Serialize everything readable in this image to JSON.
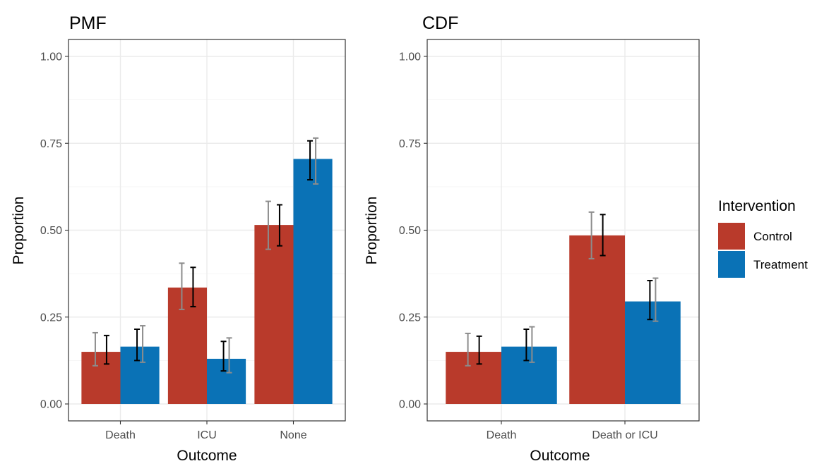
{
  "legend": {
    "title": "Intervention",
    "items": [
      {
        "label": "Control",
        "color": "#B93A2B"
      },
      {
        "label": "Treatment",
        "color": "#0A72B6"
      }
    ],
    "placement": "right"
  },
  "interval_colors": {
    "outer": "#8c8c8c",
    "inner": "#000000"
  },
  "chart_data": [
    {
      "type": "bar",
      "title": "PMF",
      "xlabel": "Outcome",
      "ylabel": "Proportion",
      "ylim": [
        0,
        1
      ],
      "yticks": [
        "0.00",
        "0.25",
        "0.50",
        "0.75",
        "1.00"
      ],
      "grid": true,
      "categories": [
        "Death",
        "ICU",
        "None"
      ],
      "series": [
        {
          "name": "Control",
          "color": "#B93A2B",
          "values": [
            0.15,
            0.335,
            0.515
          ],
          "interval_outer": [
            [
              0.11,
              0.205
            ],
            [
              0.272,
              0.405
            ],
            [
              0.445,
              0.583
            ]
          ],
          "interval_inner": [
            [
              0.115,
              0.197
            ],
            [
              0.28,
              0.393
            ],
            [
              0.455,
              0.573
            ]
          ]
        },
        {
          "name": "Treatment",
          "color": "#0A72B6",
          "values": [
            0.165,
            0.13,
            0.705
          ],
          "interval_outer": [
            [
              0.12,
              0.225
            ],
            [
              0.09,
              0.19
            ],
            [
              0.633,
              0.765
            ]
          ],
          "interval_inner": [
            [
              0.125,
              0.215
            ],
            [
              0.095,
              0.18
            ],
            [
              0.645,
              0.757
            ]
          ]
        }
      ]
    },
    {
      "type": "bar",
      "title": "CDF",
      "xlabel": "Outcome",
      "ylabel": "Proportion",
      "ylim": [
        0,
        1
      ],
      "yticks": [
        "0.00",
        "0.25",
        "0.50",
        "0.75",
        "1.00"
      ],
      "grid": true,
      "categories": [
        "Death",
        "Death or ICU"
      ],
      "series": [
        {
          "name": "Control",
          "color": "#B93A2B",
          "values": [
            0.15,
            0.485
          ],
          "interval_outer": [
            [
              0.11,
              0.203
            ],
            [
              0.418,
              0.552
            ]
          ],
          "interval_inner": [
            [
              0.115,
              0.195
            ],
            [
              0.427,
              0.545
            ]
          ]
        },
        {
          "name": "Treatment",
          "color": "#0A72B6",
          "values": [
            0.165,
            0.295
          ],
          "interval_outer": [
            [
              0.12,
              0.222
            ],
            [
              0.238,
              0.362
            ]
          ],
          "interval_inner": [
            [
              0.125,
              0.215
            ],
            [
              0.243,
              0.355
            ]
          ]
        }
      ]
    }
  ]
}
